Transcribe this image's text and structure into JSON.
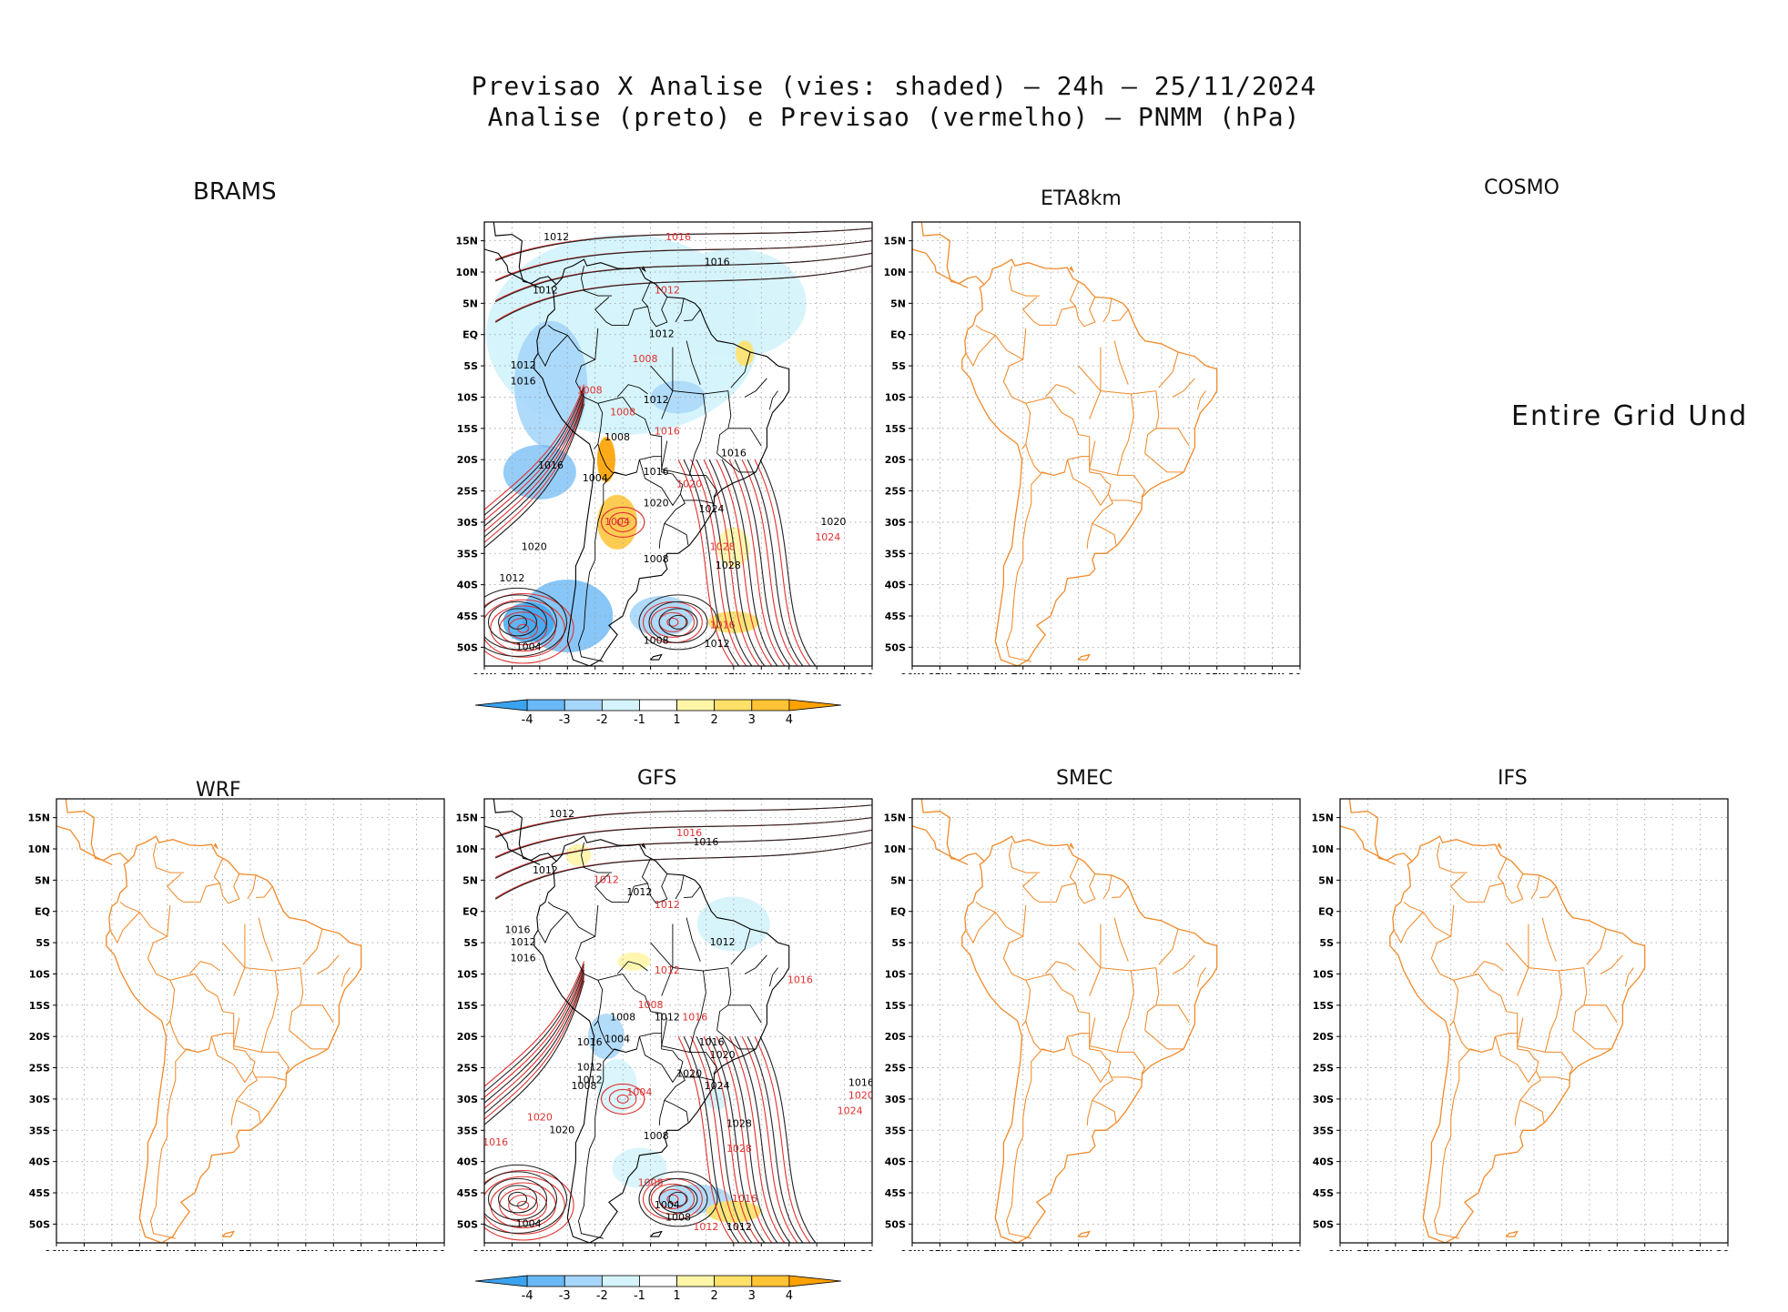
{
  "header": {
    "title_line1": "Previsao X Analise (vies: shaded) — 24h — 25/11/2024",
    "title_line2": "Analise (preto) e Previsao (vermelho) — PNMM (hPa)"
  },
  "axes": {
    "lon_labels": [
      "90W",
      "85W",
      "80W",
      "75W",
      "70W",
      "65W",
      "60W",
      "55W",
      "50W",
      "45W",
      "40W",
      "35W",
      "30W",
      "25W",
      "20W"
    ],
    "lat_labels": [
      "15N",
      "10N",
      "5N",
      "EQ",
      "5S",
      "10S",
      "15S",
      "20S",
      "25S",
      "30S",
      "35S",
      "40S",
      "45S",
      "50S"
    ],
    "lon_range": [
      -90,
      -20
    ],
    "lat_range": [
      -53,
      18
    ]
  },
  "panels": [
    {
      "id": "brams",
      "label": "BRAMS",
      "has_field": true
    },
    {
      "id": "eta8km",
      "label": "ETA8km",
      "has_field": false
    },
    {
      "id": "cosmo",
      "label": "COSMO",
      "undefined_text": "Entire Grid Und"
    },
    {
      "id": "wrf",
      "label": "WRF",
      "has_field": false
    },
    {
      "id": "gfs",
      "label": "GFS",
      "has_field": true
    },
    {
      "id": "smec",
      "label": "SMEC",
      "has_field": false
    },
    {
      "id": "ifs",
      "label": "IFS",
      "has_field": false
    }
  ],
  "colorbar": {
    "labels": [
      "-4",
      "-3",
      "-2",
      "-1",
      "1",
      "2",
      "3",
      "4"
    ],
    "colors": [
      "#3aa3f0",
      "#6ab8f5",
      "#a6d6fa",
      "#d4f3fb",
      "#ffffff",
      "#fff6a8",
      "#ffe169",
      "#ffc335",
      "#ffa200"
    ]
  },
  "contour_labels": {
    "analysis_color": "#000000",
    "forecast_color": "#e03030",
    "brams": [
      {
        "t": "1012",
        "lon": -77,
        "lat": 15.5,
        "c": "k"
      },
      {
        "t": "1016",
        "lon": -55,
        "lat": 15.5,
        "c": "r"
      },
      {
        "t": "1016",
        "lon": -48,
        "lat": 11.5,
        "c": "k"
      },
      {
        "t": "1012",
        "lon": -57,
        "lat": 7,
        "c": "r"
      },
      {
        "t": "1012",
        "lon": -79,
        "lat": 7,
        "c": "k"
      },
      {
        "t": "1012",
        "lon": -58,
        "lat": 0,
        "c": "k"
      },
      {
        "t": "1008",
        "lon": -61,
        "lat": -4,
        "c": "r"
      },
      {
        "t": "1012",
        "lon": -83,
        "lat": -5,
        "c": "k"
      },
      {
        "t": "1016",
        "lon": -83,
        "lat": -7.5,
        "c": "k"
      },
      {
        "t": "1008",
        "lon": -71,
        "lat": -9,
        "c": "r"
      },
      {
        "t": "1012",
        "lon": -59,
        "lat": -10.5,
        "c": "k"
      },
      {
        "t": "1008",
        "lon": -65,
        "lat": -12.5,
        "c": "r"
      },
      {
        "t": "1008",
        "lon": -66,
        "lat": -16.5,
        "c": "k"
      },
      {
        "t": "1016",
        "lon": -57,
        "lat": -15.5,
        "c": "r"
      },
      {
        "t": "1016",
        "lon": -78,
        "lat": -21,
        "c": "k"
      },
      {
        "t": "1004",
        "lon": -70,
        "lat": -23,
        "c": "k"
      },
      {
        "t": "1016",
        "lon": -59,
        "lat": -22,
        "c": "k"
      },
      {
        "t": "1016",
        "lon": -45,
        "lat": -19,
        "c": "k"
      },
      {
        "t": "1020",
        "lon": -53,
        "lat": -24,
        "c": "r"
      },
      {
        "t": "1020",
        "lon": -59,
        "lat": -27,
        "c": "k"
      },
      {
        "t": "1024",
        "lon": -49,
        "lat": -28,
        "c": "k"
      },
      {
        "t": "1004",
        "lon": -66,
        "lat": -30,
        "c": "r"
      },
      {
        "t": "1020",
        "lon": -27,
        "lat": -30,
        "c": "k"
      },
      {
        "t": "1024",
        "lon": -28,
        "lat": -32.5,
        "c": "r"
      },
      {
        "t": "1020",
        "lon": -81,
        "lat": -34,
        "c": "k"
      },
      {
        "t": "1028",
        "lon": -47,
        "lat": -34,
        "c": "r"
      },
      {
        "t": "1008",
        "lon": -59,
        "lat": -36,
        "c": "k"
      },
      {
        "t": "1028",
        "lon": -46,
        "lat": -37,
        "c": "k"
      },
      {
        "t": "1012",
        "lon": -85,
        "lat": -39,
        "c": "k"
      },
      {
        "t": "1016",
        "lon": -47,
        "lat": -46.5,
        "c": "r"
      },
      {
        "t": "1008",
        "lon": -59,
        "lat": -49,
        "c": "k"
      },
      {
        "t": "1012",
        "lon": -48,
        "lat": -49.5,
        "c": "k"
      },
      {
        "t": "1004",
        "lon": -82,
        "lat": -50,
        "c": "k"
      }
    ],
    "gfs": [
      {
        "t": "1012",
        "lon": -76,
        "lat": 15.5,
        "c": "k"
      },
      {
        "t": "1016",
        "lon": -53,
        "lat": 12.5,
        "c": "r"
      },
      {
        "t": "1016",
        "lon": -50,
        "lat": 11,
        "c": "k"
      },
      {
        "t": "1012",
        "lon": -79,
        "lat": 6.5,
        "c": "k"
      },
      {
        "t": "1012",
        "lon": -68,
        "lat": 5,
        "c": "r"
      },
      {
        "t": "1012",
        "lon": -62,
        "lat": 3,
        "c": "k"
      },
      {
        "t": "1012",
        "lon": -57,
        "lat": 1,
        "c": "r"
      },
      {
        "t": "1016",
        "lon": -84,
        "lat": -3,
        "c": "k"
      },
      {
        "t": "1012",
        "lon": -83,
        "lat": -5,
        "c": "k"
      },
      {
        "t": "1016",
        "lon": -83,
        "lat": -7.5,
        "c": "k"
      },
      {
        "t": "1012",
        "lon": -47,
        "lat": -5,
        "c": "k"
      },
      {
        "t": "1012",
        "lon": -57,
        "lat": -9.5,
        "c": "r"
      },
      {
        "t": "1016",
        "lon": -33,
        "lat": -11,
        "c": "r"
      },
      {
        "t": "1008",
        "lon": -60,
        "lat": -15,
        "c": "r"
      },
      {
        "t": "1008",
        "lon": -65,
        "lat": -17,
        "c": "k"
      },
      {
        "t": "1012",
        "lon": -57,
        "lat": -17,
        "c": "k"
      },
      {
        "t": "1016",
        "lon": -52,
        "lat": -17,
        "c": "r"
      },
      {
        "t": "1016",
        "lon": -71,
        "lat": -21,
        "c": "k"
      },
      {
        "t": "1004",
        "lon": -66,
        "lat": -20.5,
        "c": "k"
      },
      {
        "t": "1016",
        "lon": -49,
        "lat": -21,
        "c": "k"
      },
      {
        "t": "1020",
        "lon": -47,
        "lat": -23,
        "c": "k"
      },
      {
        "t": "1012",
        "lon": -71,
        "lat": -25,
        "c": "k"
      },
      {
        "t": "1020",
        "lon": -53,
        "lat": -26,
        "c": "k"
      },
      {
        "t": "1012",
        "lon": -71,
        "lat": -27,
        "c": "k"
      },
      {
        "t": "1024",
        "lon": -48,
        "lat": -28,
        "c": "k"
      },
      {
        "t": "1008",
        "lon": -72,
        "lat": -28,
        "c": "k"
      },
      {
        "t": "1004",
        "lon": -62,
        "lat": -29,
        "c": "r"
      },
      {
        "t": "1016",
        "lon": -22,
        "lat": -27.5,
        "c": "k"
      },
      {
        "t": "1020",
        "lon": -22,
        "lat": -29.5,
        "c": "r"
      },
      {
        "t": "1024",
        "lon": -24,
        "lat": -32,
        "c": "r"
      },
      {
        "t": "1020",
        "lon": -80,
        "lat": -33,
        "c": "r"
      },
      {
        "t": "1020",
        "lon": -76,
        "lat": -35,
        "c": "k"
      },
      {
        "t": "1028",
        "lon": -44,
        "lat": -34,
        "c": "k"
      },
      {
        "t": "1008",
        "lon": -59,
        "lat": -36,
        "c": "k"
      },
      {
        "t": "1016",
        "lon": -88,
        "lat": -37,
        "c": "r"
      },
      {
        "t": "1028",
        "lon": -44,
        "lat": -38,
        "c": "r"
      },
      {
        "t": "1008",
        "lon": -60,
        "lat": -43.5,
        "c": "r"
      },
      {
        "t": "1016",
        "lon": -43,
        "lat": -46,
        "c": "r"
      },
      {
        "t": "1004",
        "lon": -57,
        "lat": -47,
        "c": "k"
      },
      {
        "t": "1008",
        "lon": -55,
        "lat": -49,
        "c": "k"
      },
      {
        "t": "1012",
        "lon": -50,
        "lat": -50.5,
        "c": "r"
      },
      {
        "t": "1012",
        "lon": -44,
        "lat": -50.5,
        "c": "k"
      },
      {
        "t": "1004",
        "lon": -82,
        "lat": -50,
        "c": "k"
      }
    ]
  }
}
